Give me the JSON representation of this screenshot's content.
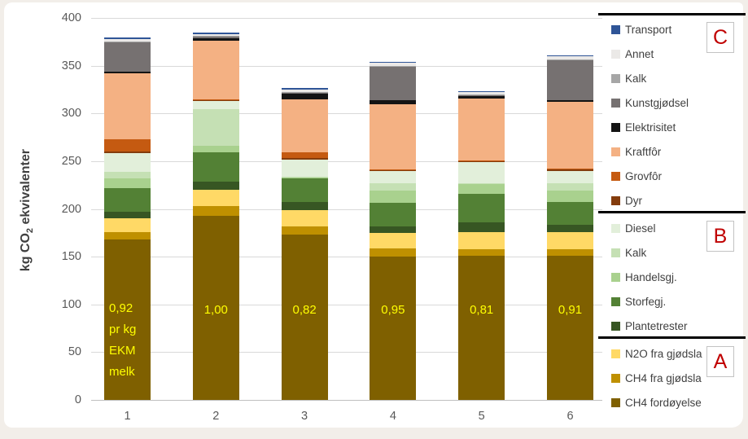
{
  "colors": {
    "page_bg": "#f2eee9",
    "panel_bg": "#ffffff",
    "gridline": "#d9d9d9",
    "axis_line": "#bfbfbf",
    "tick_text": "#595959",
    "legend_text": "#404040",
    "bar_label_text": "#ffff00",
    "group_letter": "#c00000",
    "separator": "#000000"
  },
  "y_axis_title": {
    "pre": "kg CO",
    "sub": "2",
    "post": " ekvivalenter"
  },
  "chart_data": {
    "type": "bar",
    "subtype": "stacked-column",
    "title": "",
    "xlabel": "",
    "ylabel": "kg CO2 ekvivalenter",
    "ylim": [
      0,
      400
    ],
    "y_ticks": [
      0,
      50,
      100,
      150,
      200,
      250,
      300,
      350,
      400
    ],
    "grid": true,
    "legend_position": "right",
    "categories": [
      "1",
      "2",
      "3",
      "4",
      "5",
      "6"
    ],
    "stack_order_note": "series listed bottom-to-top of each column; legend shows reverse order grouped A (bottom), B (middle), C (top)",
    "series": [
      {
        "name": "CH4 fordøyelse",
        "group": "A",
        "color": "#7f6000",
        "values": [
          168,
          193,
          173,
          150,
          151,
          151
        ]
      },
      {
        "name": "CH4 fra gjødsla",
        "group": "A",
        "color": "#bf9000",
        "values": [
          8,
          10,
          8.5,
          8.5,
          7,
          7
        ]
      },
      {
        "name": "N2O fra gjødsla",
        "group": "A",
        "color": "#ffd966",
        "values": [
          14,
          17,
          17,
          16,
          18,
          18
        ]
      },
      {
        "name": "Plantetrester",
        "group": "B",
        "color": "#375623",
        "values": [
          7,
          8.5,
          8.5,
          7,
          10,
          7
        ]
      },
      {
        "name": "Storfegj.",
        "group": "B",
        "color": "#538135",
        "values": [
          25,
          31,
          25,
          25,
          30,
          24
        ]
      },
      {
        "name": "Handelsgj.",
        "group": "B",
        "color": "#a9d18e",
        "values": [
          10,
          7,
          1,
          13,
          10,
          12
        ]
      },
      {
        "name": "Kalk",
        "group": "B",
        "color": "#c5e0b4",
        "values": [
          7,
          38,
          1,
          7,
          1,
          8
        ]
      },
      {
        "name": "Diesel",
        "group": "B",
        "color": "#e2efda",
        "values": [
          19,
          9,
          18,
          13,
          22,
          13
        ]
      },
      {
        "name": "Dyr",
        "group": "C",
        "color": "#843c0c",
        "values": [
          2,
          0.5,
          1,
          1,
          1,
          1
        ]
      },
      {
        "name": "Grovfôr",
        "group": "C",
        "color": "#c55a11",
        "values": [
          13,
          0.5,
          6,
          1,
          0.5,
          1
        ]
      },
      {
        "name": "Kraftfôr",
        "group": "C",
        "color": "#f4b183",
        "values": [
          69,
          62,
          56,
          68,
          65,
          70
        ]
      },
      {
        "name": "Elektrisitet",
        "group": "C",
        "color": "#141414",
        "values": [
          2,
          2,
          6,
          4,
          3,
          2
        ]
      },
      {
        "name": "Kunstgjødsel",
        "group": "C",
        "color": "#767171",
        "values": [
          30,
          2,
          0.5,
          36,
          0.5,
          42
        ]
      },
      {
        "name": "Kalk",
        "group": "C",
        "color": "#a6a6a6",
        "values": [
          1,
          0.5,
          0.5,
          0.5,
          0.5,
          0.5
        ]
      },
      {
        "name": "Annet",
        "group": "C",
        "color": "#ebe9e7",
        "values": [
          3,
          2,
          3,
          3,
          2.5,
          3
        ]
      },
      {
        "name": "Transport",
        "group": "C",
        "color": "#2f5597",
        "values": [
          1.5,
          1.5,
          1.5,
          1,
          1.5,
          1.5
        ]
      }
    ],
    "column_totals_approx": [
      379,
      384,
      327,
      353,
      324,
      361
    ],
    "bar_value_labels": [
      "0,92",
      "1,00",
      "0,82",
      "0,95",
      "0,81",
      "0,91"
    ],
    "bar1_sublabel_lines": [
      "pr kg",
      "EKM",
      "melk"
    ],
    "legend_group_labels_top_to_bottom": [
      "C",
      "B",
      "A"
    ]
  }
}
